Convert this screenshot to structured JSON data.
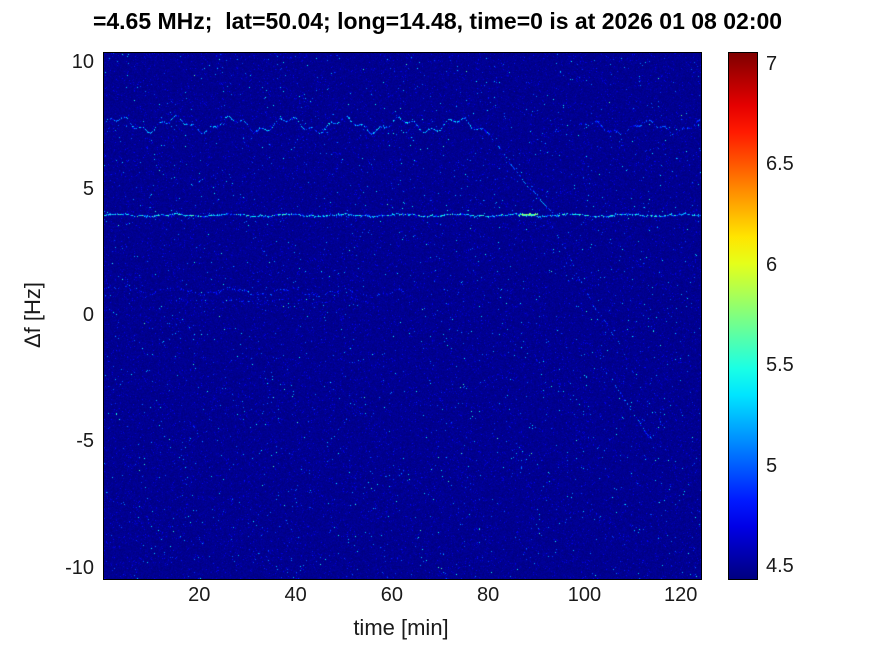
{
  "title": "=4.65 MHz;  lat=50.04; long=14.48, time=0 is at 2026 01 08 02:00",
  "chart_data": {
    "type": "heatmap",
    "title": "=4.65 MHz;  lat=50.04; long=14.48, time=0 is at 2026 01 08 02:00",
    "xlabel": "time [min]",
    "ylabel": "Δf [Hz]",
    "xlim": [
      0,
      124
    ],
    "ylim": [
      -10.4,
      10.4
    ],
    "x_ticks": [
      20,
      40,
      60,
      80,
      100,
      120
    ],
    "y_ticks": [
      10,
      5,
      0,
      -5,
      -10
    ],
    "colormap": "jet",
    "clim": [
      4.44,
      7.06
    ],
    "colorbar_ticks": [
      4.5,
      5,
      5.5,
      6,
      6.5,
      7
    ],
    "background_value": 4.45,
    "legend_position": "colorbar-right",
    "grid": false,
    "noise": {
      "dark_frac": 0.91,
      "mid_frac": 0.075,
      "bright_frac": 0.015,
      "dark_range": [
        4.44,
        4.52
      ],
      "mid_range": [
        4.5,
        4.8
      ],
      "bright_range": [
        4.6,
        5.7
      ]
    },
    "features": [
      {
        "kind": "trace",
        "x0": 0,
        "y0": 7.6,
        "x1": 80,
        "y1": 7.55,
        "wobble": 0.35,
        "density": 0.8,
        "vmin": 4.6,
        "vmax": 5.5
      },
      {
        "kind": "trace",
        "x0": 98,
        "y0": 7.45,
        "x1": 124,
        "y1": 7.5,
        "wobble": 0.3,
        "density": 0.55,
        "vmin": 4.55,
        "vmax": 5.2
      },
      {
        "kind": "trace",
        "x0": 0,
        "y0": 4.0,
        "x1": 124,
        "y1": 4.0,
        "wobble": 0.06,
        "density": 0.92,
        "vmin": 4.7,
        "vmax": 5.7
      },
      {
        "kind": "trace",
        "x0": 86,
        "y0": 4.0,
        "x1": 90,
        "y1": 4.0,
        "wobble": 0.05,
        "density": 1,
        "vmin": 5.3,
        "vmax": 6.1
      },
      {
        "kind": "trace",
        "x0": 0,
        "y0": 1.05,
        "x1": 62,
        "y1": 0.9,
        "wobble": 0.18,
        "density": 0.5,
        "vmin": 4.55,
        "vmax": 5.05
      },
      {
        "kind": "trace",
        "x0": 12,
        "y0": 0.55,
        "x1": 55,
        "y1": 0.65,
        "wobble": 0.12,
        "density": 0.3,
        "vmin": 4.5,
        "vmax": 4.9
      },
      {
        "kind": "trace",
        "x0": 78,
        "y0": 7.55,
        "x1": 93,
        "y1": 4.0,
        "wobble": 0.1,
        "density": 0.65,
        "vmin": 4.6,
        "vmax": 5.35
      },
      {
        "kind": "trace",
        "x0": 92,
        "y0": 3.8,
        "x1": 117,
        "y1": -4.6,
        "wobble": 0.18,
        "density": 0.45,
        "vmin": 4.55,
        "vmax": 5.2
      },
      {
        "kind": "trace",
        "x0": 103,
        "y0": -2.0,
        "x1": 114,
        "y1": -4.9,
        "wobble": 0.1,
        "density": 0.55,
        "vmin": 4.6,
        "vmax": 5.3
      }
    ]
  },
  "colors": {
    "background": "#ffffff",
    "title_text": "#000000",
    "axis_text": "#1a1a1a",
    "base_field": "#00008f"
  }
}
